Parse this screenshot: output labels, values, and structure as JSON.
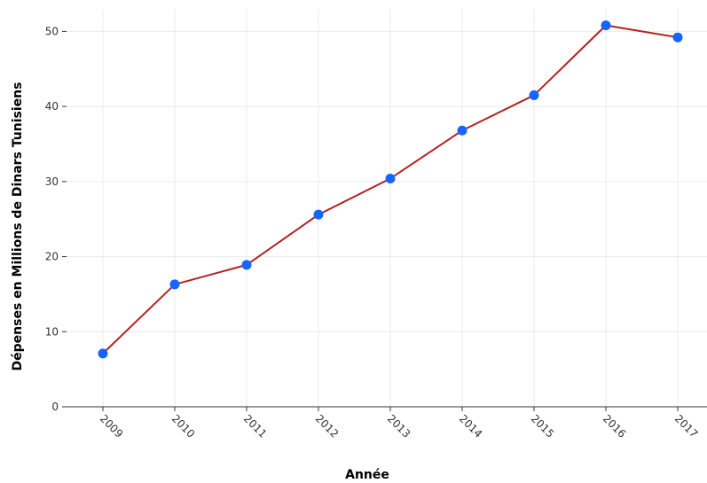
{
  "chart_data": {
    "type": "line",
    "title": "",
    "xlabel": "Année",
    "ylabel": "Dépenses en Millions de Dinars Tunisiens",
    "categories": [
      "2009",
      "2010",
      "2011",
      "2012",
      "2013",
      "2014",
      "2015",
      "2016",
      "2017"
    ],
    "series": [
      {
        "values": [
          7.1,
          16.3,
          18.9,
          25.6,
          30.4,
          36.8,
          41.5,
          50.8,
          49.2
        ],
        "line_color": "#b22222",
        "marker_color": "#1565ff"
      }
    ],
    "y_ticks": [
      "0",
      "10",
      "20",
      "30",
      "40",
      "50"
    ],
    "ylim": [
      0,
      53
    ],
    "grid": true,
    "legend": "none"
  }
}
